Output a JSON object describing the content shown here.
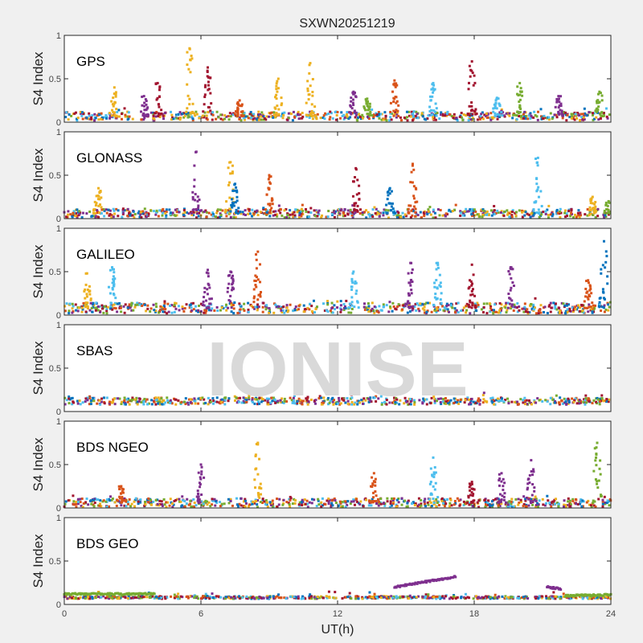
{
  "chart_data": {
    "type": "scatter",
    "title": "SXWN20251219",
    "xlabel": "UT(h)",
    "ylabel": "S4 Index",
    "xlim": [
      0,
      24
    ],
    "ylim": [
      0,
      1
    ],
    "xticks": [
      "0",
      "6",
      "12",
      "18",
      "24"
    ],
    "yticks": [
      "0",
      "0.5",
      "1"
    ],
    "watermark": "IONISE",
    "colors": {
      "blue": "#0072BD",
      "orange": "#D95319",
      "yellow": "#EDB120",
      "purple": "#7E2F8E",
      "green": "#77AC30",
      "cyan": "#4DBEEE",
      "red": "#A2142F"
    },
    "panels": [
      {
        "name": "GPS",
        "baseline": 0.07,
        "spread": 0.05,
        "spikes": [
          [
            2.2,
            0.4,
            "yellow"
          ],
          [
            3.5,
            0.3,
            "purple"
          ],
          [
            4.1,
            0.45,
            "red"
          ],
          [
            5.5,
            0.85,
            "yellow"
          ],
          [
            6.3,
            0.63,
            "red"
          ],
          [
            7.7,
            0.25,
            "orange"
          ],
          [
            9.4,
            0.5,
            "yellow"
          ],
          [
            10.8,
            0.68,
            "yellow"
          ],
          [
            12.7,
            0.35,
            "purple"
          ],
          [
            13.3,
            0.27,
            "green"
          ],
          [
            14.5,
            0.48,
            "orange"
          ],
          [
            16.2,
            0.45,
            "cyan"
          ],
          [
            17.9,
            0.7,
            "red"
          ],
          [
            19.0,
            0.28,
            "cyan"
          ],
          [
            20.0,
            0.45,
            "green"
          ],
          [
            21.7,
            0.3,
            "purple"
          ],
          [
            23.5,
            0.35,
            "green"
          ]
        ]
      },
      {
        "name": "GLONASS",
        "baseline": 0.06,
        "spread": 0.05,
        "spikes": [
          [
            1.5,
            0.35,
            "yellow"
          ],
          [
            5.8,
            0.77,
            "purple"
          ],
          [
            7.3,
            0.65,
            "yellow"
          ],
          [
            7.5,
            0.4,
            "blue"
          ],
          [
            9.0,
            0.5,
            "orange"
          ],
          [
            12.8,
            0.58,
            "red"
          ],
          [
            14.3,
            0.35,
            "blue"
          ],
          [
            15.3,
            0.63,
            "orange"
          ],
          [
            20.8,
            0.7,
            "cyan"
          ],
          [
            23.2,
            0.25,
            "yellow"
          ],
          [
            23.9,
            0.2,
            "green"
          ]
        ]
      },
      {
        "name": "GALILEO",
        "baseline": 0.08,
        "spread": 0.06,
        "spikes": [
          [
            1.0,
            0.48,
            "yellow"
          ],
          [
            2.1,
            0.55,
            "cyan"
          ],
          [
            6.3,
            0.52,
            "purple"
          ],
          [
            7.3,
            0.5,
            "purple"
          ],
          [
            8.5,
            0.73,
            "orange"
          ],
          [
            12.7,
            0.5,
            "cyan"
          ],
          [
            15.2,
            0.6,
            "purple"
          ],
          [
            16.4,
            0.6,
            "cyan"
          ],
          [
            17.9,
            0.58,
            "red"
          ],
          [
            19.6,
            0.55,
            "purple"
          ],
          [
            23.0,
            0.4,
            "orange"
          ],
          [
            23.7,
            0.85,
            "blue"
          ]
        ]
      },
      {
        "name": "SBAS",
        "baseline": 0.12,
        "spread": 0.04,
        "spikes": []
      },
      {
        "name": "BDS NGEO",
        "baseline": 0.06,
        "spread": 0.05,
        "spikes": [
          [
            2.5,
            0.25,
            "orange"
          ],
          [
            6.0,
            0.5,
            "purple"
          ],
          [
            8.5,
            0.75,
            "yellow"
          ],
          [
            13.6,
            0.4,
            "orange"
          ],
          [
            16.2,
            0.58,
            "cyan"
          ],
          [
            17.9,
            0.3,
            "red"
          ],
          [
            19.2,
            0.4,
            "purple"
          ],
          [
            20.5,
            0.55,
            "purple"
          ],
          [
            23.4,
            0.75,
            "green"
          ]
        ]
      },
      {
        "name": "BDS GEO",
        "baseline": 0.08,
        "spread": 0.015,
        "spikes": [],
        "tracks": [
          [
            0,
            4,
            0.12,
            0.12,
            "green"
          ],
          [
            14.5,
            17.2,
            0.2,
            0.32,
            "purple"
          ],
          [
            21.2,
            21.8,
            0.2,
            0.18,
            "purple"
          ],
          [
            22,
            24,
            0.1,
            0.11,
            "green"
          ]
        ]
      }
    ]
  }
}
